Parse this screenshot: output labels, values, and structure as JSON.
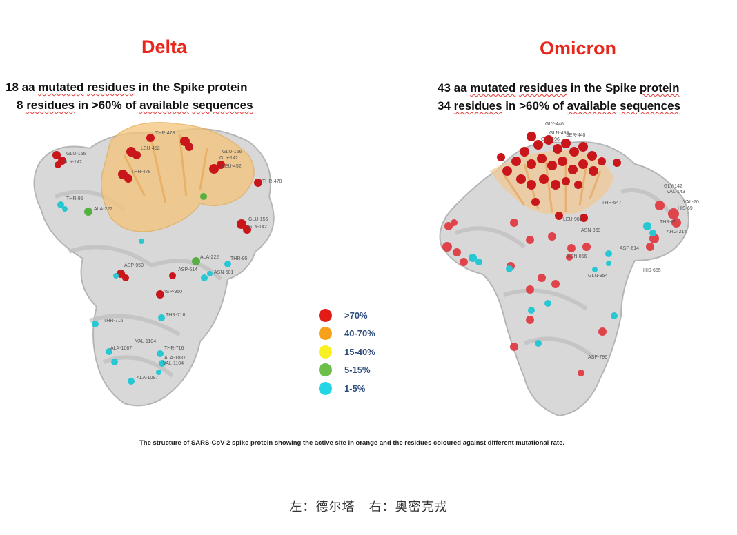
{
  "left": {
    "title": "Delta",
    "line1": [
      "18 aa ",
      "mutated",
      " ",
      "residues",
      " in the Spike protein"
    ],
    "line2": [
      "8 ",
      "residues",
      " in >60% of ",
      "available",
      " ",
      "sequences"
    ],
    "residue_labels": [
      "GLU-156",
      "GLY-142",
      "THR-478",
      "LEU-452",
      "GLU-156",
      "GLY-142",
      "LEU-452",
      "THR-478",
      "THR-478",
      "THR-95",
      "ALA-222",
      "GLU-156",
      "GLY-142",
      "ASP-950",
      "ALA-222",
      "THR-95",
      "ASP-614",
      "ASN-501",
      "ASP-950",
      "THR-716",
      "THR-716",
      "VAL-1104",
      "ALA-1087",
      "THR-716",
      "ALA-1087",
      "VAL-1104",
      "ALA-1087"
    ]
  },
  "right": {
    "title": "Omicron",
    "line1": [
      "43 aa ",
      "mutated",
      " ",
      "residues",
      " in the Spike ",
      "protein"
    ],
    "line2": [
      "34 ",
      "residues",
      " in >60% of ",
      "available",
      " ",
      "sequences"
    ],
    "residue_labels": [
      "GLY-446",
      "GLN-498",
      "SER-440",
      "GLY-496",
      "GLY-142",
      "VAL-143",
      "VAL-70",
      "HIS-69",
      "THR-547",
      "THR-95",
      "ARG-214",
      "ASN-969",
      "ASP-614",
      "ASN-856",
      "GLN-954",
      "HIS-655",
      "ASP-796",
      "LEU-981"
    ]
  },
  "legend": [
    {
      "label": ">70%",
      "color": "#e31b17"
    },
    {
      "label": "40-70%",
      "color": "#f5a21a"
    },
    {
      "label": "15-40%",
      "color": "#f8f022"
    },
    {
      "label": "5-15%",
      "color": "#6cc04a"
    },
    {
      "label": "1-5%",
      "color": "#22d6e6"
    }
  ],
  "caption": "The structure of SARS-CoV-2 spike protein showing the active site in orange and the residues coloured against different mutational rate.",
  "footer": "左：德尔塔   右：奥密克戎"
}
